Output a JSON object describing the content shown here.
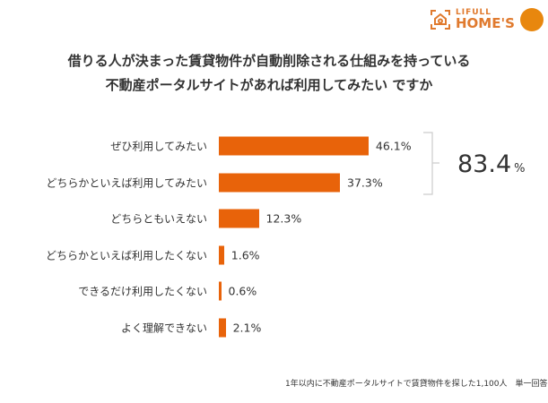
{
  "logo": {
    "line1": "LIFULL",
    "line2": "HOME'S"
  },
  "chart_data": {
    "type": "bar",
    "orientation": "horizontal",
    "title": [
      "借りる人が決まった賃貸物件が自動削除される仕組みを持っている",
      "不動産ポータルサイトがあれば利用してみたい ですか"
    ],
    "categories": [
      "ぜひ利用してみたい",
      "どちらかといえば利用してみたい",
      "どちらともいえない",
      "どちらかといえば利用したくない",
      "できるだけ利用したくない",
      "よく理解できない"
    ],
    "values": [
      46.1,
      37.3,
      12.3,
      1.6,
      0.6,
      2.1
    ],
    "data_labels": [
      "46.1%",
      "37.3%",
      "12.3%",
      "1.6%",
      "0.6%",
      "2.1%"
    ],
    "unit": "%",
    "color": "#e8630a",
    "annotation": {
      "value": "83.4",
      "unit": "%",
      "covers": [
        "ぜひ利用してみたい",
        "どちらかといえば利用してみたい"
      ]
    },
    "grid": false
  },
  "footer": "1年以内に不動産ポータルサイトで賃貸物件を探した1,100人　単一回答"
}
